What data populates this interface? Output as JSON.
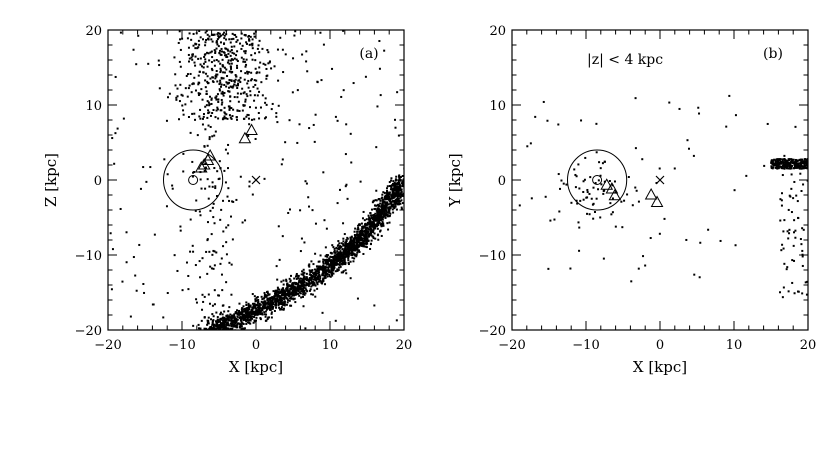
{
  "chart_data": [
    {
      "type": "scatter",
      "panel_label": "(a)",
      "annotation": "",
      "xlabel": "X [kpc]",
      "ylabel": "Z [kpc]",
      "xlim": [
        -20,
        20
      ],
      "ylim": [
        -20,
        20
      ],
      "xticks": [
        "−20",
        "−10",
        "0",
        "10",
        "20"
      ],
      "yticks": [
        "−20",
        "−10",
        "0",
        "10",
        "20"
      ],
      "grid": false,
      "circle": {
        "center": [
          -8.5,
          0
        ],
        "radius": 4
      },
      "sun": {
        "x": -8.5,
        "y": 0
      },
      "galactic_center": {
        "x": 0,
        "y": 0
      },
      "triangles": [
        {
          "x": -7,
          "y": 2
        },
        {
          "x": -6.5,
          "y": 2.6
        },
        {
          "x": -6.2,
          "y": 3.2
        },
        {
          "x": -7.4,
          "y": 1.6
        },
        {
          "x": -1.5,
          "y": 5.5
        },
        {
          "x": -0.6,
          "y": 6.6
        }
      ],
      "stream": {
        "x": [
          -6,
          2,
          10,
          15,
          20
        ],
        "y": [
          -20,
          -16.5,
          -11.5,
          -7,
          0
        ]
      }
    },
    {
      "type": "scatter",
      "panel_label": "(b)",
      "annotation": "|z| < 4 kpc",
      "xlabel": "X [kpc]",
      "ylabel": "Y [kpc]",
      "xlim": [
        -20,
        20
      ],
      "ylim": [
        -20,
        20
      ],
      "xticks": [
        "−20",
        "−10",
        "0",
        "10",
        "20"
      ],
      "yticks": [
        "−20",
        "−10",
        "0",
        "10",
        "20"
      ],
      "grid": false,
      "circle": {
        "center": [
          -8.5,
          0
        ],
        "radius": 4
      },
      "sun": {
        "x": -8.5,
        "y": 0
      },
      "galactic_center": {
        "x": 0,
        "y": 0
      },
      "triangles": [
        {
          "x": -7.2,
          "y": -0.7
        },
        {
          "x": -6.5,
          "y": -1.2
        },
        {
          "x": -6.1,
          "y": -2.1
        },
        {
          "x": -1.2,
          "y": -2
        },
        {
          "x": -0.4,
          "y": -3
        }
      ],
      "clump": {
        "x": [
          15,
          20
        ],
        "y": [
          1.5,
          2.8
        ]
      }
    }
  ]
}
